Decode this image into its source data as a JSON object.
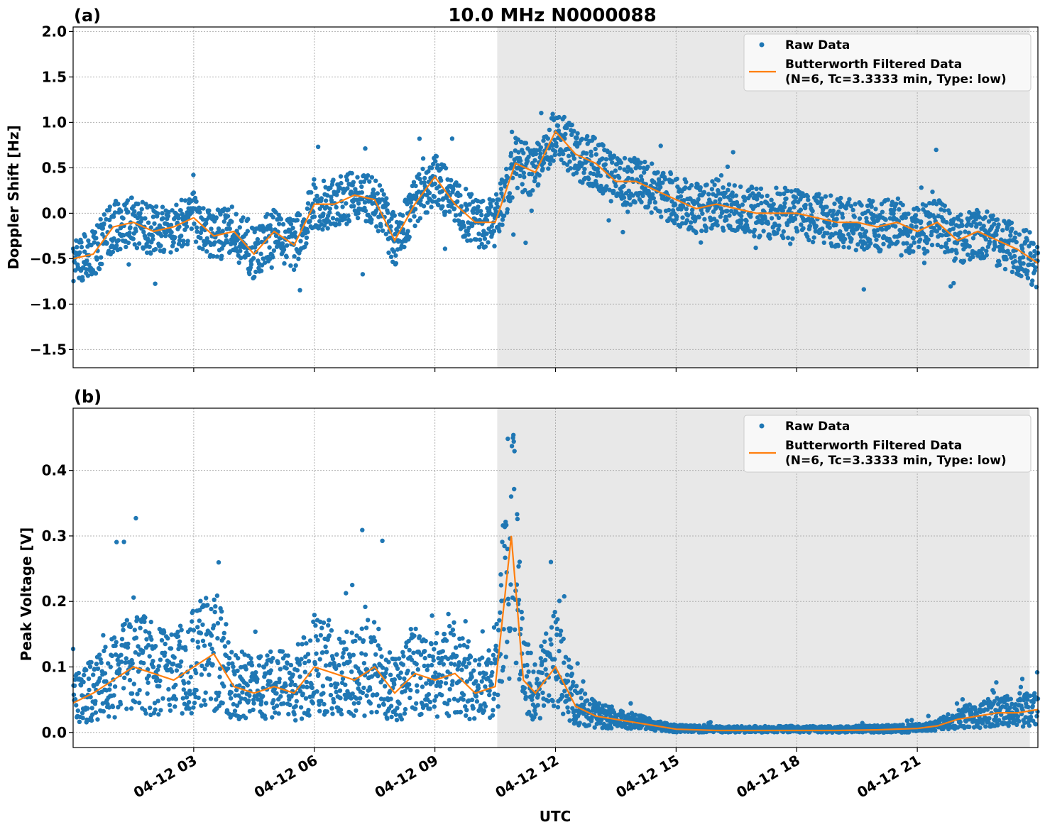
{
  "figure": {
    "title": "10.0 MHz N0000088",
    "xlabel": "UTC",
    "xticks": [
      "04-12 03",
      "04-12 06",
      "04-12 09",
      "04-12 12",
      "04-12 15",
      "04-12 18",
      "04-12 21"
    ],
    "shaded_region_utc_hours": [
      10.55,
      23.8
    ]
  },
  "legend": {
    "raw": "Raw Data",
    "filtered_line1": "Butterworth Filtered Data",
    "filtered_line2": "(N=6, Tc=3.3333 min, Type: low)",
    "placement": "top-right"
  },
  "colors": {
    "raw": "#1f77b4",
    "filtered": "#ff7f0e",
    "shade": "#e8e8e8"
  },
  "chart_data": [
    {
      "panel_label": "(a)",
      "type": "scatter",
      "ylabel": "Doppler Shift [Hz]",
      "xlim": [
        0,
        24
      ],
      "ylim": [
        -1.7,
        2.05
      ],
      "yticks": [
        "2.0",
        "1.5",
        "1.0",
        "0.5",
        "0.0",
        "−0.5",
        "−1.0",
        "−1.5"
      ],
      "grid": true,
      "series": [
        {
          "name": "Butterworth Filtered Data",
          "x": [
            0.0,
            0.5,
            1.0,
            1.5,
            2.0,
            2.5,
            3.0,
            3.5,
            4.0,
            4.5,
            5.0,
            5.5,
            6.0,
            6.5,
            7.0,
            7.5,
            8.0,
            8.5,
            9.0,
            9.5,
            10.0,
            10.5,
            11.0,
            11.5,
            12.0,
            12.5,
            13.0,
            13.5,
            14.0,
            14.5,
            15.0,
            15.5,
            16.0,
            16.5,
            17.0,
            17.5,
            18.0,
            18.5,
            19.0,
            19.5,
            20.0,
            20.5,
            21.0,
            21.5,
            22.0,
            22.5,
            23.0,
            23.5,
            24.0
          ],
          "y": [
            -0.5,
            -0.45,
            -0.15,
            -0.1,
            -0.2,
            -0.15,
            -0.05,
            -0.25,
            -0.2,
            -0.45,
            -0.2,
            -0.35,
            0.1,
            0.1,
            0.2,
            0.15,
            -0.3,
            0.1,
            0.4,
            0.1,
            -0.1,
            -0.1,
            0.55,
            0.45,
            0.9,
            0.65,
            0.55,
            0.35,
            0.35,
            0.25,
            0.15,
            0.05,
            0.1,
            0.05,
            0.0,
            0.0,
            0.0,
            -0.05,
            -0.1,
            -0.1,
            -0.15,
            -0.1,
            -0.2,
            -0.1,
            -0.3,
            -0.2,
            -0.3,
            -0.4,
            -0.55
          ]
        }
      ]
    },
    {
      "panel_label": "(b)",
      "type": "scatter",
      "ylabel": "Peak Voltage [V]",
      "xlim": [
        0,
        24
      ],
      "ylim": [
        -0.023,
        0.495
      ],
      "yticks": [
        "0.4",
        "0.3",
        "0.2",
        "0.1",
        "0.0"
      ],
      "grid": true,
      "series": [
        {
          "name": "Butterworth Filtered Data",
          "x": [
            0.0,
            0.5,
            1.0,
            1.5,
            2.0,
            2.5,
            3.0,
            3.5,
            4.0,
            4.5,
            5.0,
            5.5,
            6.0,
            6.5,
            7.0,
            7.5,
            8.0,
            8.5,
            9.0,
            9.5,
            10.0,
            10.5,
            10.9,
            11.2,
            11.5,
            12.0,
            12.5,
            13.0,
            13.5,
            14.0,
            14.5,
            15.0,
            16.0,
            17.0,
            18.0,
            19.0,
            20.0,
            21.0,
            21.5,
            22.0,
            22.5,
            23.0,
            23.5,
            24.0
          ],
          "y": [
            0.045,
            0.06,
            0.08,
            0.1,
            0.09,
            0.08,
            0.1,
            0.12,
            0.07,
            0.06,
            0.07,
            0.06,
            0.1,
            0.09,
            0.08,
            0.1,
            0.06,
            0.09,
            0.08,
            0.09,
            0.06,
            0.07,
            0.3,
            0.08,
            0.06,
            0.1,
            0.04,
            0.025,
            0.02,
            0.015,
            0.01,
            0.005,
            0.003,
            0.003,
            0.003,
            0.003,
            0.004,
            0.006,
            0.01,
            0.02,
            0.025,
            0.03,
            0.03,
            0.035
          ]
        }
      ]
    }
  ]
}
